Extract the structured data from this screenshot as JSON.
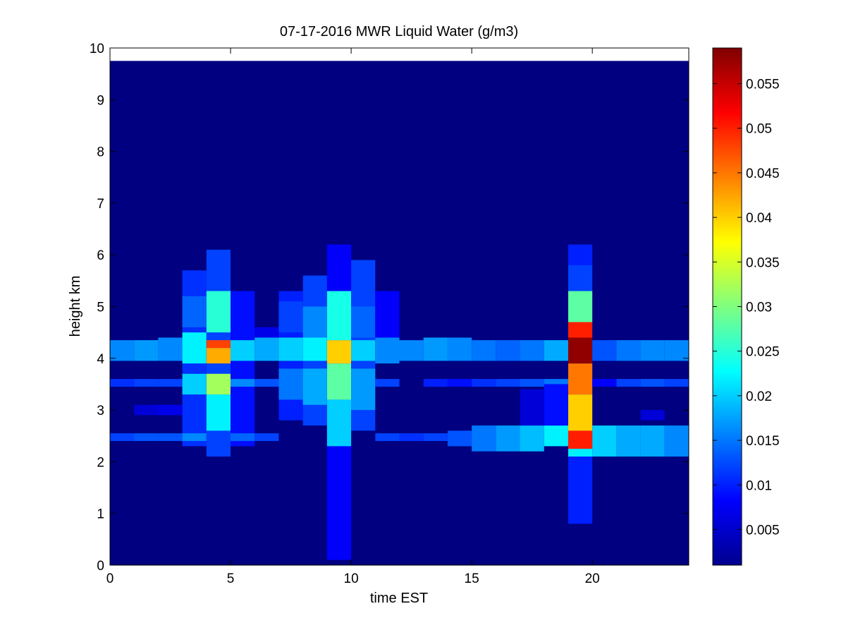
{
  "chart_data": {
    "type": "heatmap",
    "title": "07-17-2016 MWR Liquid Water (g/m3)",
    "xlabel": "time EST",
    "ylabel": "height km",
    "xlim": [
      0,
      24
    ],
    "ylim": [
      0,
      10
    ],
    "x_ticks": [
      "0",
      "5",
      "10",
      "15",
      "20"
    ],
    "y_ticks": [
      "0",
      "1",
      "2",
      "3",
      "4",
      "5",
      "6",
      "7",
      "8",
      "9",
      "10"
    ],
    "colormap": "jet",
    "clim": [
      0.001,
      0.059
    ],
    "colorbar_ticks": [
      "0.005",
      "0.01",
      "0.015",
      "0.02",
      "0.025",
      "0.03",
      "0.035",
      "0.04",
      "0.045",
      "0.05",
      "0.055"
    ],
    "grid": false,
    "time_hours": [
      0,
      1,
      2,
      3,
      4,
      5,
      6,
      7,
      8,
      9,
      10,
      11,
      12,
      13,
      14,
      15,
      16,
      17,
      18,
      19,
      20,
      21,
      22,
      23
    ],
    "height_top_km": 9.75,
    "columns": [
      {
        "t": 0,
        "segments": [
          [
            2.4,
            2.55,
            0.012
          ],
          [
            3.45,
            3.6,
            0.011
          ],
          [
            3.95,
            4.35,
            0.016
          ]
        ]
      },
      {
        "t": 1,
        "segments": [
          [
            2.4,
            2.55,
            0.013
          ],
          [
            3.45,
            3.6,
            0.012
          ],
          [
            3.95,
            4.35,
            0.017
          ],
          [
            2.9,
            3.1,
            0.006
          ]
        ]
      },
      {
        "t": 2,
        "segments": [
          [
            2.4,
            2.55,
            0.013
          ],
          [
            3.45,
            3.6,
            0.012
          ],
          [
            3.95,
            4.4,
            0.016
          ],
          [
            2.9,
            3.1,
            0.007
          ]
        ]
      },
      {
        "t": 3,
        "segments": [
          [
            2.3,
            5.7,
            0.011
          ],
          [
            2.4,
            2.55,
            0.016
          ],
          [
            3.3,
            3.7,
            0.02
          ],
          [
            3.9,
            4.5,
            0.022
          ],
          [
            4.6,
            5.2,
            0.014
          ]
        ]
      },
      {
        "t": 4,
        "segments": [
          [
            2.1,
            6.1,
            0.012
          ],
          [
            2.6,
            3.3,
            0.022
          ],
          [
            3.3,
            3.7,
            0.032
          ],
          [
            3.9,
            4.2,
            0.042
          ],
          [
            4.2,
            4.35,
            0.048
          ],
          [
            4.5,
            5.3,
            0.025
          ]
        ]
      },
      {
        "t": 5,
        "segments": [
          [
            2.3,
            5.3,
            0.009
          ],
          [
            2.4,
            2.55,
            0.014
          ],
          [
            3.45,
            3.6,
            0.016
          ],
          [
            3.95,
            4.35,
            0.02
          ]
        ]
      },
      {
        "t": 6,
        "segments": [
          [
            2.4,
            2.55,
            0.012
          ],
          [
            3.45,
            3.6,
            0.013
          ],
          [
            3.95,
            4.4,
            0.018
          ],
          [
            4.4,
            4.6,
            0.007
          ]
        ]
      },
      {
        "t": 7,
        "segments": [
          [
            2.8,
            5.3,
            0.01
          ],
          [
            3.2,
            3.8,
            0.015
          ],
          [
            3.95,
            4.4,
            0.02
          ],
          [
            4.5,
            5.1,
            0.012
          ]
        ]
      },
      {
        "t": 8,
        "segments": [
          [
            2.7,
            5.6,
            0.012
          ],
          [
            3.1,
            3.8,
            0.018
          ],
          [
            3.95,
            4.4,
            0.022
          ],
          [
            4.4,
            5.0,
            0.016
          ]
        ]
      },
      {
        "t": 9,
        "segments": [
          [
            0.1,
            6.2,
            0.008
          ],
          [
            2.3,
            3.2,
            0.02
          ],
          [
            3.2,
            3.9,
            0.028
          ],
          [
            3.9,
            4.35,
            0.04
          ],
          [
            4.35,
            5.3,
            0.024
          ]
        ]
      },
      {
        "t": 10,
        "segments": [
          [
            2.6,
            5.9,
            0.012
          ],
          [
            3.0,
            3.8,
            0.017
          ],
          [
            3.95,
            4.35,
            0.02
          ],
          [
            4.4,
            5.0,
            0.014
          ]
        ]
      },
      {
        "t": 11,
        "segments": [
          [
            2.4,
            2.55,
            0.012
          ],
          [
            3.45,
            3.6,
            0.012
          ],
          [
            3.9,
            4.4,
            0.016
          ],
          [
            4.4,
            5.3,
            0.008
          ]
        ]
      },
      {
        "t": 12,
        "segments": [
          [
            2.4,
            2.55,
            0.011
          ],
          [
            3.95,
            4.35,
            0.016
          ]
        ]
      },
      {
        "t": 13,
        "segments": [
          [
            2.4,
            2.55,
            0.012
          ],
          [
            3.45,
            3.6,
            0.01
          ],
          [
            3.95,
            4.4,
            0.017
          ]
        ]
      },
      {
        "t": 14,
        "segments": [
          [
            2.3,
            2.6,
            0.013
          ],
          [
            3.45,
            3.6,
            0.009
          ],
          [
            3.95,
            4.4,
            0.016
          ]
        ]
      },
      {
        "t": 15,
        "segments": [
          [
            2.2,
            2.7,
            0.015
          ],
          [
            3.45,
            3.6,
            0.011
          ],
          [
            3.95,
            4.35,
            0.015
          ]
        ]
      },
      {
        "t": 16,
        "segments": [
          [
            2.2,
            2.7,
            0.017
          ],
          [
            3.45,
            3.6,
            0.012
          ],
          [
            3.95,
            4.35,
            0.014
          ]
        ]
      },
      {
        "t": 17,
        "segments": [
          [
            2.2,
            2.7,
            0.019
          ],
          [
            3.45,
            3.6,
            0.013
          ],
          [
            3.95,
            4.35,
            0.015
          ],
          [
            2.7,
            3.4,
            0.006
          ]
        ]
      },
      {
        "t": 18,
        "segments": [
          [
            2.3,
            2.7,
            0.022
          ],
          [
            3.45,
            3.6,
            0.015
          ],
          [
            3.95,
            4.35,
            0.018
          ],
          [
            2.7,
            3.5,
            0.009
          ]
        ]
      },
      {
        "t": 19,
        "segments": [
          [
            0.8,
            6.2,
            0.01
          ],
          [
            2.1,
            2.25,
            0.022
          ],
          [
            2.25,
            2.6,
            0.05
          ],
          [
            2.6,
            3.3,
            0.04
          ],
          [
            3.3,
            3.9,
            0.045
          ],
          [
            3.9,
            4.4,
            0.058
          ],
          [
            4.4,
            4.7,
            0.05
          ],
          [
            4.7,
            5.3,
            0.028
          ],
          [
            5.3,
            5.8,
            0.012
          ]
        ]
      },
      {
        "t": 20,
        "segments": [
          [
            2.1,
            2.7,
            0.02
          ],
          [
            3.45,
            3.6,
            0.008
          ],
          [
            3.95,
            4.35,
            0.013
          ]
        ]
      },
      {
        "t": 21,
        "segments": [
          [
            2.1,
            2.7,
            0.018
          ],
          [
            3.45,
            3.6,
            0.012
          ],
          [
            3.95,
            4.35,
            0.015
          ]
        ]
      },
      {
        "t": 22,
        "segments": [
          [
            2.1,
            2.7,
            0.018
          ],
          [
            3.45,
            3.6,
            0.013
          ],
          [
            3.95,
            4.35,
            0.016
          ],
          [
            2.8,
            3.0,
            0.006
          ]
        ]
      },
      {
        "t": 23,
        "segments": [
          [
            2.1,
            2.7,
            0.016
          ],
          [
            3.45,
            3.6,
            0.012
          ],
          [
            3.95,
            4.35,
            0.016
          ]
        ]
      }
    ]
  }
}
